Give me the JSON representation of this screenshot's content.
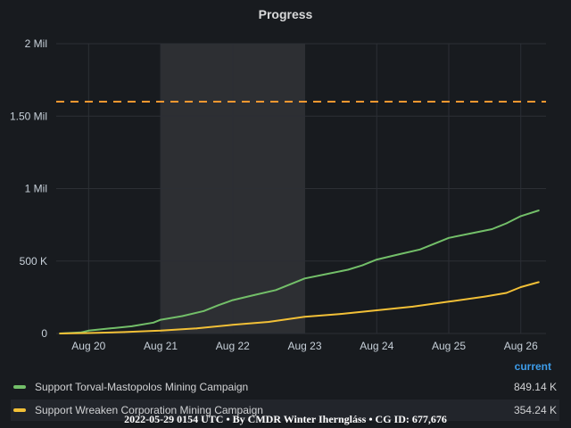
{
  "panel": {
    "title": "Progress"
  },
  "colors": {
    "background": "#181b1f",
    "grid": "#2c2f35",
    "highlight_band": "#2d2f33",
    "threshold": "#ff9830",
    "legend_header": "#3d9ce9"
  },
  "chart_data": {
    "type": "line",
    "title": "Progress",
    "xlabel": "",
    "ylabel": "",
    "x_ticks": [
      "Aug 20",
      "Aug 21",
      "Aug 22",
      "Aug 23",
      "Aug 24",
      "Aug 25",
      "Aug 26"
    ],
    "y_ticks": [
      "0",
      "500 K",
      "1 Mil",
      "1.50 Mil",
      "2 Mil"
    ],
    "ylim": [
      0,
      2000000
    ],
    "xlim_days": [
      19.55,
      26.35
    ],
    "grid": true,
    "highlight_range": [
      "Aug 21",
      "Aug 23"
    ],
    "threshold": {
      "value": 1600000,
      "style": "dashed",
      "color": "#ff9830"
    },
    "legend_placement": "bottom",
    "series": [
      {
        "name": "Support Torval-Mastopolos Mining Campaign",
        "color": "#73bf69",
        "x": [
          "Aug 19.6",
          "Aug 19.9",
          "Aug 20.0",
          "Aug 20.3",
          "Aug 20.6",
          "Aug 20.9",
          "Aug 21.0",
          "Aug 21.3",
          "Aug 21.6",
          "Aug 21.8",
          "Aug 22.0",
          "Aug 22.3",
          "Aug 22.6",
          "Aug 22.8",
          "Aug 23.0",
          "Aug 23.3",
          "Aug 23.6",
          "Aug 23.8",
          "Aug 24.0",
          "Aug 24.3",
          "Aug 24.6",
          "Aug 24.8",
          "Aug 25.0",
          "Aug 25.3",
          "Aug 25.6",
          "Aug 25.8",
          "Aug 26.0",
          "Aug 26.25"
        ],
        "days": [
          19.6,
          19.9,
          20.0,
          20.3,
          20.6,
          20.9,
          21.0,
          21.3,
          21.6,
          21.8,
          22.0,
          22.3,
          22.6,
          22.8,
          23.0,
          23.3,
          23.6,
          23.8,
          24.0,
          24.3,
          24.6,
          24.8,
          25.0,
          25.3,
          25.6,
          25.8,
          26.0,
          26.25
        ],
        "values": [
          0,
          8000,
          20000,
          35000,
          50000,
          75000,
          95000,
          120000,
          155000,
          195000,
          230000,
          265000,
          300000,
          340000,
          380000,
          410000,
          440000,
          470000,
          510000,
          545000,
          580000,
          620000,
          660000,
          690000,
          720000,
          760000,
          810000,
          849140
        ]
      },
      {
        "name": "Support Wreaken Corporation Mining Campaign",
        "color": "#f2c037",
        "x": [
          "Aug 19.6",
          "Aug 20.0",
          "Aug 20.5",
          "Aug 21.0",
          "Aug 21.5",
          "Aug 22.0",
          "Aug 22.5",
          "Aug 23.0",
          "Aug 23.5",
          "Aug 24.0",
          "Aug 24.5",
          "Aug 25.0",
          "Aug 25.5",
          "Aug 25.8",
          "Aug 26.0",
          "Aug 26.25"
        ],
        "days": [
          19.6,
          20.0,
          20.5,
          21.0,
          21.5,
          22.0,
          22.5,
          23.0,
          23.5,
          24.0,
          24.5,
          25.0,
          25.5,
          25.8,
          26.0,
          26.25
        ],
        "values": [
          0,
          3000,
          10000,
          20000,
          35000,
          60000,
          80000,
          115000,
          135000,
          160000,
          185000,
          220000,
          255000,
          280000,
          320000,
          354240
        ]
      }
    ]
  },
  "legend": {
    "header": "current",
    "items": [
      {
        "name": "Support Torval-Mastopolos Mining Campaign",
        "value": "849.14 K",
        "color": "#73bf69"
      },
      {
        "name": "Support Wreaken Corporation Mining Campaign",
        "value": "354.24 K",
        "color": "#f2c037"
      }
    ]
  },
  "footer": {
    "text": "2022-05-29 0154 UTC • By CMDR Winter Iherngláss • CG ID: 677,676"
  }
}
